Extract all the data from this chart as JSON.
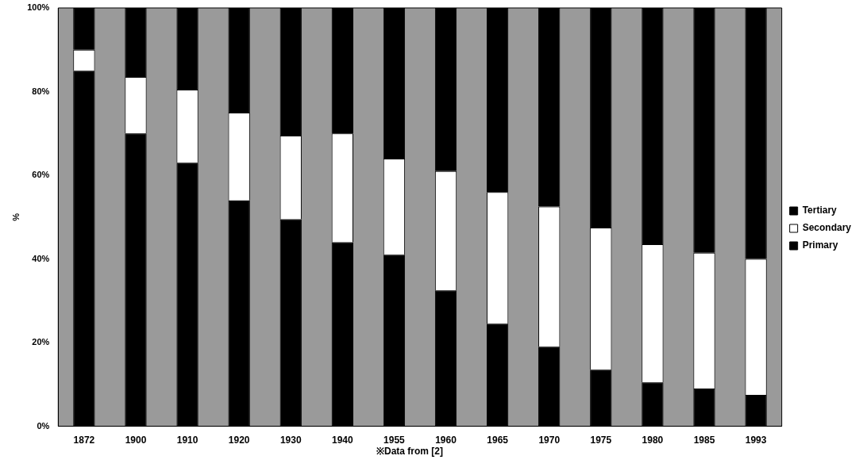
{
  "chart_data": {
    "type": "bar",
    "stacked": true,
    "ylabel": "%",
    "categories": [
      "1872",
      "1900",
      "1910",
      "1920",
      "1930",
      "1940",
      "1955",
      "1960",
      "1965",
      "1970",
      "1975",
      "1980",
      "1985",
      "1993"
    ],
    "series": [
      {
        "name": "Primary",
        "color": "#000000",
        "values": [
          85,
          70,
          63,
          54,
          49.5,
          44,
          41,
          32.5,
          24.5,
          19,
          13.5,
          10.5,
          9,
          7.5
        ]
      },
      {
        "name": "Secondary",
        "color": "#ffffff",
        "values": [
          5,
          13.5,
          17.5,
          21,
          20,
          26,
          23,
          28.5,
          31.5,
          33.5,
          34,
          33,
          32.5,
          32.5
        ]
      },
      {
        "name": "Tertiary",
        "color": "#000000",
        "values": [
          10,
          16.5,
          19.5,
          25,
          30.5,
          30,
          36,
          39,
          44,
          47.5,
          52.5,
          56.5,
          58.5,
          60
        ]
      }
    ],
    "ylim": [
      0,
      100
    ],
    "yticks": [
      {
        "value": 0,
        "label": "0%"
      },
      {
        "value": 20,
        "label": "20%"
      },
      {
        "value": 40,
        "label": "40%"
      },
      {
        "value": 60,
        "label": "60%"
      },
      {
        "value": 80,
        "label": "80%"
      },
      {
        "value": 100,
        "label": "100%"
      }
    ],
    "grid": false,
    "legend": "right",
    "annotations": [
      "※Data from [2]"
    ]
  }
}
